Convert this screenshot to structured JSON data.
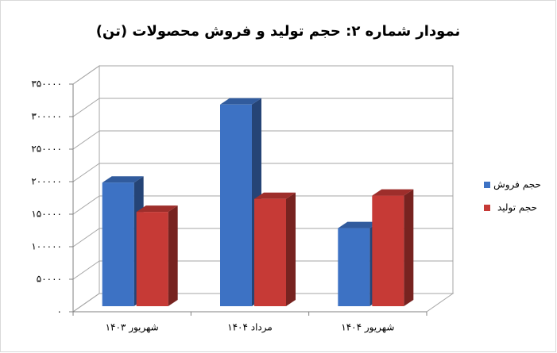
{
  "chart_data": {
    "type": "bar3d",
    "title": "نمودار شماره ۲: حجم تولید و فروش محصولات (تن)",
    "categories": [
      "شهریور ۱۴۰۳",
      "مرداد ۱۴۰۴",
      "شهریور ۱۴۰۴"
    ],
    "series": [
      {
        "name": "حجم فروش",
        "color": "#3d72c4",
        "values": [
          190000,
          310000,
          120000
        ]
      },
      {
        "name": "حجم تولید",
        "color": "#c63a36",
        "values": [
          145000,
          165000,
          170000
        ]
      }
    ],
    "ylim": [
      0,
      350000
    ],
    "yticks": [
      {
        "value": 0,
        "label": "۰"
      },
      {
        "value": 50000,
        "label": "۵۰۰۰۰"
      },
      {
        "value": 100000,
        "label": "۱۰۰۰۰۰"
      },
      {
        "value": 150000,
        "label": "۱۵۰۰۰۰"
      },
      {
        "value": 200000,
        "label": "۲۰۰۰۰۰"
      },
      {
        "value": 250000,
        "label": "۲۵۰۰۰۰"
      },
      {
        "value": 300000,
        "label": "۳۰۰۰۰۰"
      },
      {
        "value": 350000,
        "label": "۳۵۰۰۰۰"
      }
    ],
    "grid": true,
    "legend": "right"
  }
}
